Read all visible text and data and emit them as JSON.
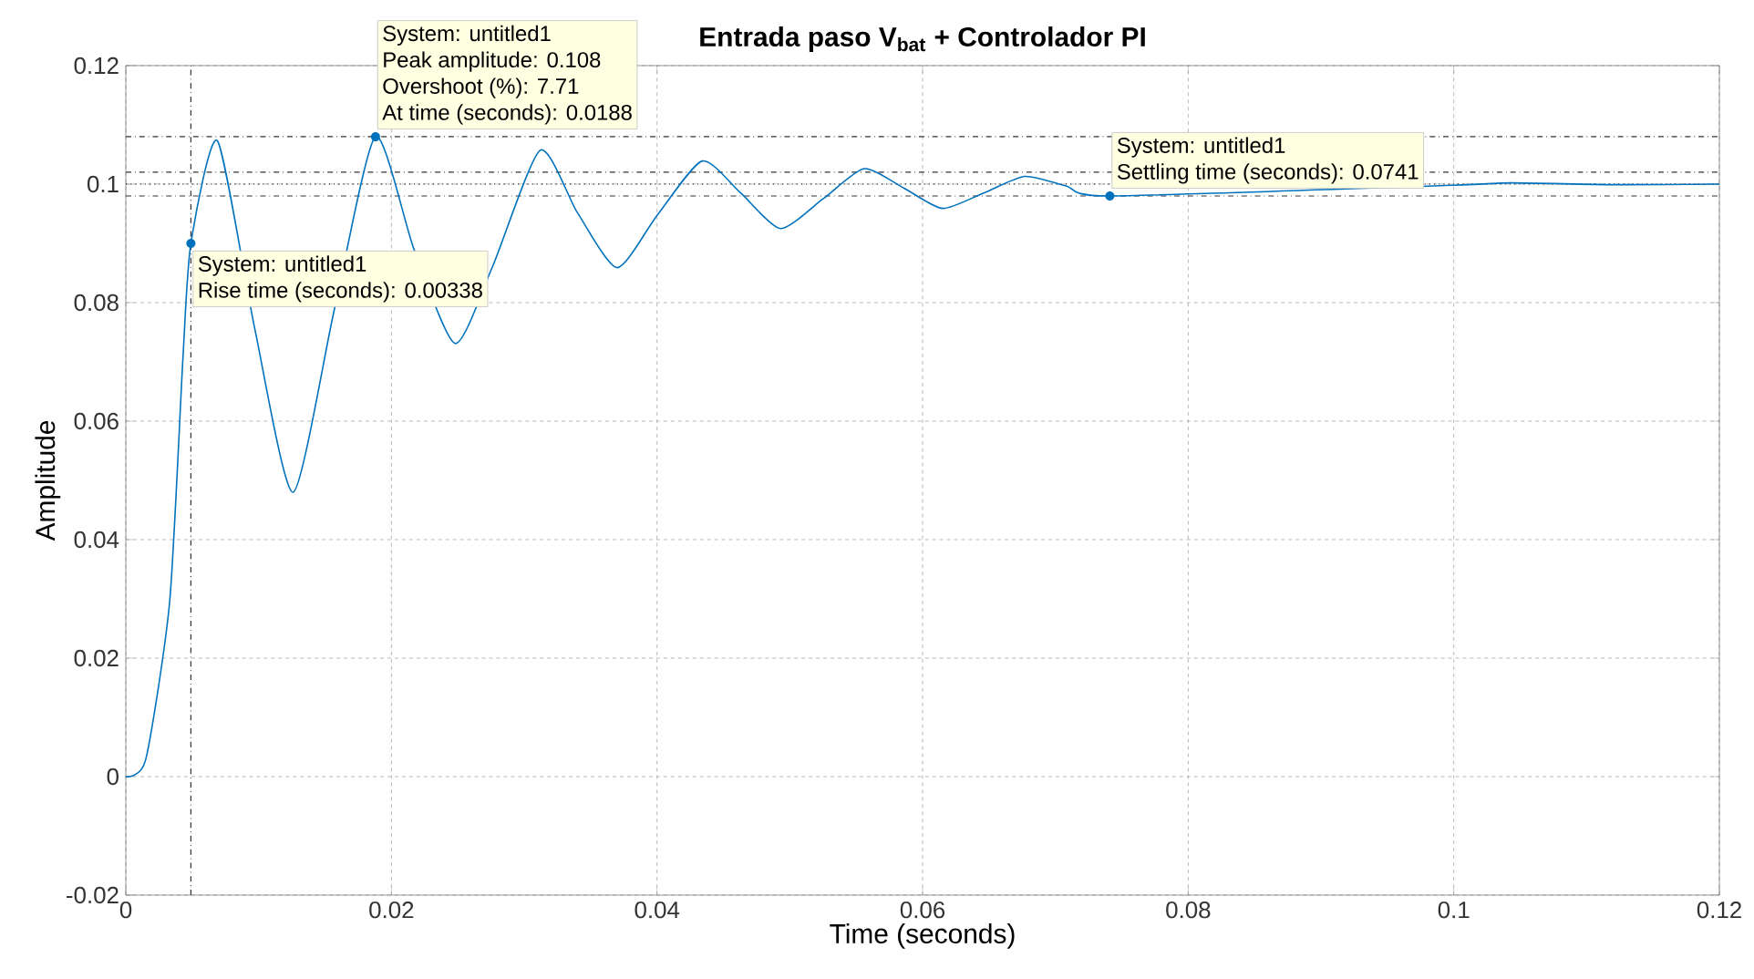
{
  "chart_data": {
    "type": "line",
    "title": "Entrada paso V$_{bat}$ + Controlador PI",
    "xlabel": "Time (seconds)",
    "ylabel": "Amplitude",
    "series": [
      {
        "color": "#0072bd",
        "x": [
          0,
          0.0015,
          0.0033,
          0.0043,
          0.0049,
          0.0069,
          0.0097,
          0.0126,
          0.0157,
          0.0188,
          0.0217,
          0.0248,
          0.0276,
          0.0312,
          0.034,
          0.037,
          0.04,
          0.0434,
          0.0463,
          0.0493,
          0.0525,
          0.0556,
          0.0586,
          0.0615,
          0.0646,
          0.0677,
          0.0708,
          0.0741,
          0.0998,
          0.1043,
          0.112,
          0.12
        ],
        "values": [
          0,
          0.0029,
          0.0295,
          0.0706,
          0.09,
          0.1073,
          0.0757,
          0.048,
          0.0788,
          0.108,
          0.089,
          0.0731,
          0.086,
          0.1057,
          0.0952,
          0.0859,
          0.0947,
          0.1039,
          0.0985,
          0.0925,
          0.0975,
          0.1026,
          0.0993,
          0.0959,
          0.0985,
          0.1013,
          0.0997,
          0.098,
          0.0998,
          0.1002,
          0.0999,
          0.1
        ]
      }
    ],
    "xlim": [
      0,
      0.12
    ],
    "ylim": [
      -0.02,
      0.12
    ],
    "xticks": [
      0,
      0.02,
      0.04,
      0.06,
      0.08,
      0.1,
      0.12
    ],
    "yticks": [
      -0.02,
      0,
      0.02,
      0.04,
      0.06,
      0.08,
      0.1,
      0.12
    ],
    "grid": true,
    "marker": "none",
    "line_style": "solid",
    "ref_lines": [
      {
        "axis": "y",
        "value": 0.108,
        "line_style": "dashdot",
        "color": "#333333"
      },
      {
        "axis": "y",
        "value": 0.102,
        "line_style": "dashdot",
        "color": "#333333"
      },
      {
        "axis": "y",
        "value": 0.098,
        "line_style": "dashdot",
        "color": "#333333"
      },
      {
        "axis": "y",
        "value": 0.1,
        "line_style": "dotted",
        "color": "#333333"
      },
      {
        "axis": "x",
        "value": 0.0049,
        "line_style": "dashdot",
        "color": "#333333"
      }
    ],
    "annotations": [
      {
        "text": "System: untitled1",
        "x": 0.0049,
        "y": 0.09
      },
      "Rise time (seconds): 0.00338",
      "System: untitled1",
      "Peak amplitude: 0.108",
      "Overshoot (%): 7.71",
      {
        "text": "At time (seconds): 0.0188",
        "x": 0.0188,
        "y": 0.108
      },
      {
        "text": "System: untitled1",
        "x": 0.0741,
        "y": 0.098
      },
      "Settling time (seconds): 0.0741"
    ]
  }
}
